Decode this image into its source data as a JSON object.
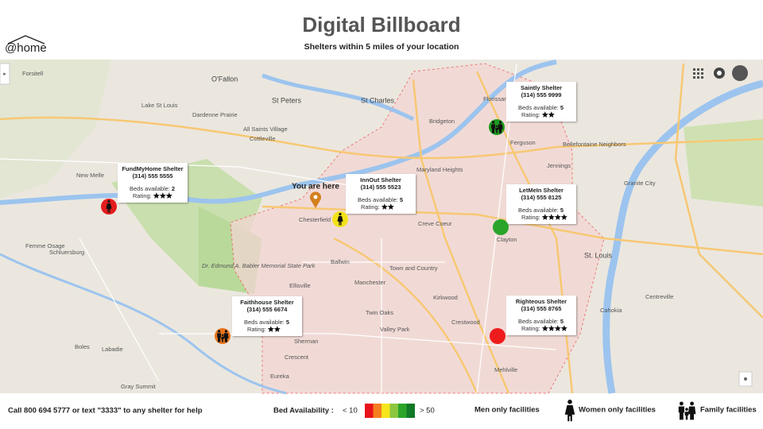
{
  "header": {
    "logo": "@home",
    "title": "Digital Billboard",
    "subtitle": "Shelters within 5 miles of your location"
  },
  "map": {
    "you_are_here": "You are here",
    "labels": [
      "Forsitell",
      "O'Fallon",
      "Lake St Louis",
      "St Peters",
      "St Charles",
      "Bridgeton",
      "Florissant",
      "Ferguson",
      "Dardenne Prairie",
      "All Saints Village",
      "Cottleville",
      "New Melle",
      "Maryland Heights",
      "Chesterfield",
      "Creve Coeur",
      "Clayton",
      "St. Louis",
      "Femme Osage",
      "Schluersburg",
      "Granite City",
      "Ballwin",
      "Manchester",
      "Town and Country",
      "Dr. Edmund A. Babler Memorial State Park",
      "Kirkwood",
      "Valley Park",
      "Crestwood",
      "Ellisville",
      "Sherman",
      "Boles",
      "Labadie",
      "Eureka",
      "Gray Summit",
      "Mehlville",
      "Cahokia",
      "Centreville",
      "Jennings",
      "Bellefontaine Neighbors",
      "Twin Oaks",
      "Crescent"
    ]
  },
  "shelters": [
    {
      "name": "Saintly Shelter",
      "phone": "(314) 555 9999",
      "beds_label": "Beds available:",
      "beds": 5,
      "rating_label": "Rating:",
      "rating": 2,
      "facility": "family",
      "color": "#1f9a1f"
    },
    {
      "name": "InnOut Shelter",
      "phone": "(314) 555 5523",
      "beds_label": "Beds available:",
      "beds": 5,
      "rating_label": "Rating:",
      "rating": 2,
      "facility": "women",
      "color": "#f3e219"
    },
    {
      "name": "LetMeIn Shelter",
      "phone": "(314) 555 8125",
      "beds_label": "Beds available:",
      "beds": 5,
      "rating_label": "Rating:",
      "rating": 4,
      "facility": "men",
      "color": "#2aa52a"
    },
    {
      "name": "FundMyHome Shelter",
      "phone": "(314) 555 5555",
      "beds_label": "Beds available:",
      "beds": 2,
      "rating_label": "Rating:",
      "rating": 3,
      "facility": "women",
      "color": "#e41c1c"
    },
    {
      "name": "Faithhouse Shelter",
      "phone": "(314) 555 6674",
      "beds_label": "Beds available:",
      "beds": 5,
      "rating_label": "Rating:",
      "rating": 2,
      "facility": "family",
      "color": "#e8731a"
    },
    {
      "name": "Righteous Shelter",
      "phone": "(314) 555 8765",
      "beds_label": "Beds available:",
      "beds": 5,
      "rating_label": "Rating:",
      "rating": 4,
      "facility": "men",
      "color": "#ee1c1c"
    }
  ],
  "footer": {
    "call": "Call 800 694 5777 or text \"3333\" to any shelter for help",
    "availability_label": "Bed Availability :",
    "low": "< 10",
    "high": "> 50",
    "scale_colors": [
      "#e8141b",
      "#f57e20",
      "#f5e51c",
      "#8cc63f",
      "#2aa52a",
      "#117a26"
    ],
    "legend": [
      {
        "facility": "men",
        "label": "Men only facilities"
      },
      {
        "facility": "women",
        "label": "Women only facilities"
      },
      {
        "facility": "family",
        "label": "Family facilities"
      }
    ]
  }
}
